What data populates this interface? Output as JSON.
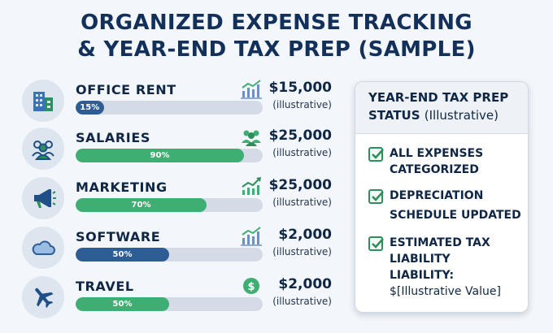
{
  "title": {
    "line1": "ORGANIZED EXPENSE TRACKING",
    "line2": "& YEAR-END TAX PREP (SAMPLE)"
  },
  "expenses": [
    {
      "label": "OFFICE RENT",
      "percent": 15,
      "percent_label": "15%",
      "amount": "$15,000",
      "note": "(illustrative)",
      "icon": "building-icon",
      "mini_icon": "bar-chart-icon",
      "bar_color": "#2d5d94"
    },
    {
      "label": "SALARIES",
      "percent": 90,
      "percent_label": "90%",
      "amount": "$25,000",
      "note": "(illustrative)",
      "icon": "people-icon",
      "mini_icon": "group-icon",
      "bar_color": "#3fae72"
    },
    {
      "label": "MARKETING",
      "percent": 70,
      "percent_label": "70%",
      "amount": "$25,000",
      "note": "(illustrative)",
      "icon": "megaphone-icon",
      "mini_icon": "trend-up-icon",
      "bar_color": "#3fae72"
    },
    {
      "label": "SOFTWARE",
      "percent": 50,
      "percent_label": "50%",
      "amount": "$2,000",
      "note": "(illustrative)",
      "icon": "cloud-icon",
      "mini_icon": "bar-chart-icon",
      "bar_color": "#2d5d94"
    },
    {
      "label": "TRAVEL",
      "percent": 50,
      "percent_label": "50%",
      "amount": "$2,000",
      "note": "(illustrative)",
      "icon": "airplane-icon",
      "mini_icon": "dollar-icon",
      "bar_color": "#3fae72"
    }
  ],
  "panel": {
    "title_line1": "YEAR-END TAX PREP",
    "title_line2": "STATUS",
    "title_note": "(Illustrative)",
    "items": [
      {
        "line1": "ALL EXPENSES",
        "line2": "CATEGORIZED"
      },
      {
        "line1": "DEPRECIATION",
        "line2": "SCHEDULE UPDATED"
      },
      {
        "line1": "ESTIMATED TAX",
        "line2": "LIABILITY",
        "line3": "LIABILITY:",
        "line4": "$[Illustrative Value]"
      }
    ]
  },
  "colors": {
    "navy": "#12305a",
    "blue_bar": "#2d5d94",
    "green_bar": "#3fae72",
    "check_green": "#2f8f5a"
  }
}
